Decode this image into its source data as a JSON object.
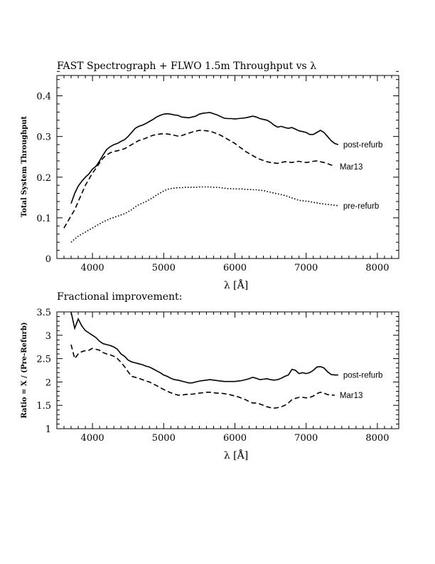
{
  "chart_data": [
    {
      "type": "line",
      "title": "FAST Spectrograph + FLWO 1.5m Throughput vs λ",
      "xlabel": "λ [Å]",
      "ylabel": "Total System Throughput",
      "xlim": [
        3500,
        8300
      ],
      "ylim": [
        0,
        0.45
      ],
      "xticks": [
        4000,
        5000,
        6000,
        7000,
        8000
      ],
      "yticks": [
        0,
        0.1,
        0.2,
        0.3,
        0.4
      ],
      "ytick_labels": [
        "0",
        "0.1",
        "0.2",
        "0.3",
        "0.4"
      ],
      "grid": false,
      "series": [
        {
          "name": "post-refurb",
          "style": "solid",
          "x": [
            3700,
            3750,
            3800,
            3850,
            3900,
            3950,
            4000,
            4050,
            4100,
            4150,
            4200,
            4250,
            4300,
            4350,
            4400,
            4450,
            4500,
            4550,
            4600,
            4650,
            4700,
            4750,
            4800,
            4850,
            4900,
            4950,
            5000,
            5050,
            5100,
            5150,
            5200,
            5250,
            5300,
            5350,
            5400,
            5450,
            5500,
            5550,
            5600,
            5650,
            5700,
            5750,
            5800,
            5850,
            5900,
            5950,
            6000,
            6050,
            6100,
            6150,
            6200,
            6250,
            6300,
            6350,
            6400,
            6450,
            6500,
            6550,
            6600,
            6650,
            6700,
            6750,
            6800,
            6850,
            6900,
            6950,
            7000,
            7050,
            7100,
            7150,
            7200,
            7250,
            7300,
            7350,
            7400,
            7450
          ],
          "values": [
            0.135,
            0.16,
            0.178,
            0.19,
            0.2,
            0.208,
            0.22,
            0.227,
            0.24,
            0.255,
            0.268,
            0.275,
            0.28,
            0.283,
            0.288,
            0.292,
            0.3,
            0.31,
            0.32,
            0.325,
            0.328,
            0.332,
            0.337,
            0.342,
            0.348,
            0.352,
            0.355,
            0.356,
            0.355,
            0.353,
            0.352,
            0.348,
            0.347,
            0.346,
            0.348,
            0.35,
            0.355,
            0.357,
            0.358,
            0.359,
            0.356,
            0.353,
            0.349,
            0.345,
            0.344,
            0.344,
            0.343,
            0.344,
            0.345,
            0.346,
            0.348,
            0.35,
            0.348,
            0.344,
            0.342,
            0.34,
            0.335,
            0.328,
            0.323,
            0.325,
            0.322,
            0.32,
            0.322,
            0.318,
            0.314,
            0.312,
            0.31,
            0.305,
            0.305,
            0.31,
            0.315,
            0.31,
            0.3,
            0.29,
            0.283,
            0.28
          ]
        },
        {
          "name": "Mar13",
          "style": "dashed",
          "x": [
            3600,
            3650,
            3700,
            3750,
            3800,
            3850,
            3900,
            3950,
            4000,
            4050,
            4100,
            4150,
            4200,
            4250,
            4300,
            4350,
            4400,
            4450,
            4500,
            4550,
            4600,
            4650,
            4700,
            4750,
            4800,
            4850,
            4900,
            4950,
            5000,
            5050,
            5100,
            5150,
            5200,
            5250,
            5300,
            5350,
            5400,
            5450,
            5500,
            5550,
            5600,
            5650,
            5700,
            5750,
            5800,
            5850,
            5900,
            5950,
            6000,
            6050,
            6100,
            6150,
            6200,
            6250,
            6300,
            6350,
            6400,
            6450,
            6500,
            6550,
            6600,
            6650,
            6700,
            6750,
            6800,
            6850,
            6900,
            6950,
            7000,
            7050,
            7100,
            7150,
            7200,
            7250,
            7300,
            7350,
            7400
          ],
          "values": [
            0.075,
            0.09,
            0.105,
            0.12,
            0.14,
            0.16,
            0.18,
            0.195,
            0.21,
            0.222,
            0.235,
            0.247,
            0.255,
            0.26,
            0.263,
            0.265,
            0.267,
            0.27,
            0.275,
            0.28,
            0.285,
            0.29,
            0.293,
            0.296,
            0.3,
            0.303,
            0.305,
            0.306,
            0.307,
            0.306,
            0.305,
            0.303,
            0.301,
            0.302,
            0.305,
            0.308,
            0.311,
            0.313,
            0.315,
            0.315,
            0.314,
            0.313,
            0.31,
            0.307,
            0.303,
            0.298,
            0.293,
            0.288,
            0.283,
            0.276,
            0.27,
            0.263,
            0.258,
            0.253,
            0.248,
            0.244,
            0.241,
            0.238,
            0.236,
            0.235,
            0.234,
            0.236,
            0.238,
            0.237,
            0.236,
            0.238,
            0.239,
            0.237,
            0.236,
            0.237,
            0.239,
            0.24,
            0.238,
            0.236,
            0.233,
            0.23,
            0.226
          ]
        },
        {
          "name": "pre-refurb",
          "style": "dotted",
          "x": [
            3700,
            3750,
            3800,
            3850,
            3900,
            3950,
            4000,
            4050,
            4100,
            4150,
            4200,
            4250,
            4300,
            4350,
            4400,
            4450,
            4500,
            4550,
            4600,
            4650,
            4700,
            4750,
            4800,
            4850,
            4900,
            4950,
            5000,
            5050,
            5100,
            5150,
            5200,
            5250,
            5300,
            5350,
            5400,
            5450,
            5500,
            5550,
            5600,
            5650,
            5700,
            5750,
            5800,
            5850,
            5900,
            5950,
            6000,
            6050,
            6100,
            6150,
            6200,
            6250,
            6300,
            6350,
            6400,
            6450,
            6500,
            6550,
            6600,
            6650,
            6700,
            6750,
            6800,
            6850,
            6900,
            6950,
            7000,
            7050,
            7100,
            7150,
            7200,
            7250,
            7300,
            7350,
            7400,
            7450
          ],
          "values": [
            0.04,
            0.048,
            0.055,
            0.06,
            0.065,
            0.07,
            0.075,
            0.08,
            0.085,
            0.09,
            0.094,
            0.098,
            0.101,
            0.104,
            0.107,
            0.11,
            0.115,
            0.12,
            0.127,
            0.132,
            0.136,
            0.14,
            0.145,
            0.15,
            0.156,
            0.161,
            0.166,
            0.17,
            0.172,
            0.173,
            0.174,
            0.174,
            0.175,
            0.175,
            0.175,
            0.175,
            0.176,
            0.176,
            0.176,
            0.176,
            0.175,
            0.175,
            0.174,
            0.173,
            0.172,
            0.172,
            0.171,
            0.171,
            0.171,
            0.17,
            0.17,
            0.169,
            0.169,
            0.168,
            0.167,
            0.165,
            0.163,
            0.161,
            0.159,
            0.157,
            0.155,
            0.152,
            0.149,
            0.146,
            0.143,
            0.142,
            0.141,
            0.14,
            0.138,
            0.137,
            0.135,
            0.134,
            0.133,
            0.132,
            0.131,
            0.13
          ]
        }
      ]
    },
    {
      "type": "line",
      "title": "Fractional improvement:",
      "xlabel": "λ [Å]",
      "ylabel": "Ratio = X / (Pre-Refurb)",
      "xlim": [
        3500,
        8300
      ],
      "ylim": [
        1,
        3.5
      ],
      "xticks": [
        4000,
        5000,
        6000,
        7000,
        8000
      ],
      "yticks": [
        1,
        1.5,
        2,
        2.5,
        3,
        3.5
      ],
      "ytick_labels": [
        "1",
        "1.5",
        "2",
        "2.5",
        "3",
        "3.5"
      ],
      "grid": false,
      "series": [
        {
          "name": "post-refurb",
          "style": "solid",
          "x": [
            3700,
            3750,
            3800,
            3850,
            3900,
            3950,
            4000,
            4050,
            4100,
            4150,
            4200,
            4250,
            4300,
            4350,
            4400,
            4450,
            4500,
            4550,
            4600,
            4650,
            4700,
            4750,
            4800,
            4850,
            4900,
            4950,
            5000,
            5050,
            5100,
            5150,
            5200,
            5250,
            5300,
            5350,
            5400,
            5450,
            5500,
            5550,
            5600,
            5650,
            5700,
            5750,
            5800,
            5850,
            5900,
            5950,
            6000,
            6050,
            6100,
            6150,
            6200,
            6250,
            6300,
            6350,
            6400,
            6450,
            6500,
            6550,
            6600,
            6650,
            6700,
            6750,
            6800,
            6850,
            6900,
            6950,
            7000,
            7050,
            7100,
            7150,
            7200,
            7250,
            7300,
            7350,
            7400,
            7450
          ],
          "values": [
            3.5,
            3.15,
            3.35,
            3.2,
            3.1,
            3.05,
            3.0,
            2.95,
            2.87,
            2.82,
            2.8,
            2.78,
            2.75,
            2.7,
            2.6,
            2.55,
            2.47,
            2.43,
            2.41,
            2.39,
            2.37,
            2.34,
            2.32,
            2.28,
            2.24,
            2.2,
            2.15,
            2.12,
            2.08,
            2.05,
            2.04,
            2.02,
            2.0,
            1.98,
            1.98,
            2.0,
            2.02,
            2.03,
            2.04,
            2.05,
            2.04,
            2.03,
            2.02,
            2.01,
            2.01,
            2.01,
            2.01,
            2.02,
            2.03,
            2.05,
            2.07,
            2.1,
            2.08,
            2.05,
            2.06,
            2.07,
            2.05,
            2.04,
            2.05,
            2.08,
            2.12,
            2.15,
            2.27,
            2.25,
            2.18,
            2.2,
            2.18,
            2.2,
            2.25,
            2.32,
            2.33,
            2.3,
            2.22,
            2.16,
            2.15,
            2.15
          ]
        },
        {
          "name": "Mar13",
          "style": "dashed",
          "x": [
            3700,
            3750,
            3800,
            3850,
            3900,
            3950,
            4000,
            4050,
            4100,
            4150,
            4200,
            4250,
            4300,
            4350,
            4400,
            4450,
            4500,
            4550,
            4600,
            4650,
            4700,
            4750,
            4800,
            4850,
            4900,
            4950,
            5000,
            5050,
            5100,
            5150,
            5200,
            5250,
            5300,
            5350,
            5400,
            5450,
            5500,
            5550,
            5600,
            5650,
            5700,
            5750,
            5800,
            5850,
            5900,
            5950,
            6000,
            6050,
            6100,
            6150,
            6200,
            6250,
            6300,
            6350,
            6400,
            6450,
            6500,
            6550,
            6600,
            6650,
            6700,
            6750,
            6800,
            6850,
            6900,
            6950,
            7000,
            7050,
            7100,
            7150,
            7200,
            7250,
            7300,
            7350,
            7400
          ],
          "values": [
            2.8,
            2.5,
            2.6,
            2.65,
            2.67,
            2.68,
            2.72,
            2.7,
            2.68,
            2.63,
            2.6,
            2.58,
            2.55,
            2.5,
            2.42,
            2.33,
            2.22,
            2.12,
            2.1,
            2.08,
            2.05,
            2.02,
            2.0,
            1.96,
            1.92,
            1.88,
            1.84,
            1.8,
            1.77,
            1.74,
            1.72,
            1.72,
            1.73,
            1.74,
            1.74,
            1.75,
            1.76,
            1.77,
            1.78,
            1.78,
            1.77,
            1.76,
            1.76,
            1.75,
            1.74,
            1.72,
            1.7,
            1.68,
            1.65,
            1.62,
            1.58,
            1.55,
            1.55,
            1.53,
            1.5,
            1.47,
            1.45,
            1.44,
            1.45,
            1.47,
            1.5,
            1.55,
            1.62,
            1.65,
            1.67,
            1.67,
            1.66,
            1.67,
            1.7,
            1.75,
            1.78,
            1.76,
            1.73,
            1.72,
            1.72
          ]
        }
      ]
    }
  ]
}
